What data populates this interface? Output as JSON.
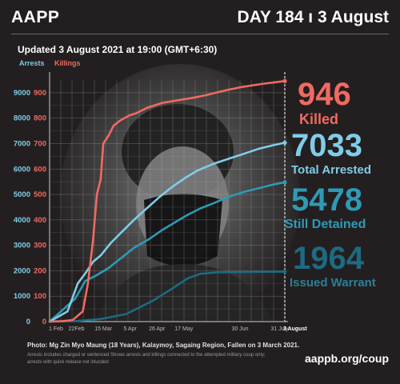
{
  "header": {
    "logo": "AAPP",
    "day": "DAY 184 ı 3 August"
  },
  "updated": "Updated 3 August 2021 at 19:00 (GMT+6:30)",
  "axis_titles": {
    "arrests": "Arrests",
    "killings": "Killings"
  },
  "stats": [
    {
      "value": "946",
      "label": "Killed",
      "color": "#f06a62"
    },
    {
      "value": "7033",
      "label": "Total Arrested",
      "color": "#7fcde8"
    },
    {
      "value": "5478",
      "label": "Still Detained",
      "color": "#2e9ab6"
    },
    {
      "value": "1964",
      "label": "Issued Warrant",
      "color": "#1d6a82"
    }
  ],
  "photo_credit": "Photo: Mg Zin Myo Maung (18 Years), Kalaymoy, Sagaing Region, Fallen on 3 March 2021.",
  "footnote": "Arrests includes charged or sentenced Shows arrests and killings connected to the attempted military coup only; arrests with quick release not inlucded",
  "website": "aappb.org/coup",
  "chart_data": {
    "type": "line",
    "x_tick_labels": [
      "1 Feb",
      "22Feb",
      "15 Mar",
      "5 Apr",
      "26 Apr",
      "17 May",
      "30 Jun",
      "31 July",
      "3 August"
    ],
    "y_left": {
      "label": "Arrests",
      "range": [
        0,
        9500
      ],
      "ticks": [
        0,
        1000,
        2000,
        3000,
        4000,
        5000,
        6000,
        7000,
        8000,
        9000
      ]
    },
    "y_right": {
      "label": "Killings",
      "range": [
        0,
        950
      ],
      "ticks": [
        0,
        100,
        200,
        300,
        400,
        500,
        600,
        700,
        800,
        900
      ]
    },
    "grid": true,
    "series": [
      {
        "name": "Killings",
        "axis": "right",
        "color": "#f06a62",
        "points": [
          [
            0,
            0
          ],
          [
            10,
            2
          ],
          [
            18,
            6
          ],
          [
            26,
            40
          ],
          [
            30,
            150
          ],
          [
            34,
            320
          ],
          [
            37,
            500
          ],
          [
            40,
            560
          ],
          [
            42,
            700
          ],
          [
            46,
            730
          ],
          [
            50,
            770
          ],
          [
            55,
            790
          ],
          [
            62,
            810
          ],
          [
            68,
            820
          ],
          [
            76,
            840
          ],
          [
            88,
            860
          ],
          [
            100,
            870
          ],
          [
            112,
            880
          ],
          [
            122,
            890
          ],
          [
            130,
            900
          ],
          [
            140,
            912
          ],
          [
            150,
            922
          ],
          [
            160,
            930
          ],
          [
            168,
            936
          ],
          [
            176,
            941
          ],
          [
            184,
            946
          ]
        ]
      },
      {
        "name": "Total Arrested",
        "axis": "left",
        "color": "#7fcde8",
        "points": [
          [
            0,
            0
          ],
          [
            14,
            400
          ],
          [
            22,
            1500
          ],
          [
            28,
            1900
          ],
          [
            34,
            2350
          ],
          [
            40,
            2600
          ],
          [
            48,
            3100
          ],
          [
            56,
            3500
          ],
          [
            66,
            4000
          ],
          [
            76,
            4450
          ],
          [
            86,
            4900
          ],
          [
            96,
            5300
          ],
          [
            106,
            5650
          ],
          [
            116,
            5950
          ],
          [
            128,
            6200
          ],
          [
            140,
            6400
          ],
          [
            152,
            6600
          ],
          [
            164,
            6800
          ],
          [
            176,
            6950
          ],
          [
            184,
            7033
          ]
        ]
      },
      {
        "name": "Still Detained",
        "axis": "left",
        "color": "#2e9ab6",
        "points": [
          [
            0,
            0
          ],
          [
            20,
            900
          ],
          [
            28,
            1600
          ],
          [
            36,
            1800
          ],
          [
            46,
            2100
          ],
          [
            56,
            2500
          ],
          [
            66,
            2900
          ],
          [
            78,
            3250
          ],
          [
            88,
            3600
          ],
          [
            98,
            3900
          ],
          [
            108,
            4200
          ],
          [
            118,
            4450
          ],
          [
            128,
            4650
          ],
          [
            140,
            4900
          ],
          [
            152,
            5100
          ],
          [
            164,
            5250
          ],
          [
            176,
            5400
          ],
          [
            184,
            5478
          ]
        ]
      },
      {
        "name": "Issued Warrant",
        "axis": "left",
        "color": "#1d6a82",
        "points": [
          [
            0,
            0
          ],
          [
            20,
            20
          ],
          [
            40,
            100
          ],
          [
            60,
            300
          ],
          [
            80,
            800
          ],
          [
            96,
            1300
          ],
          [
            108,
            1700
          ],
          [
            118,
            1880
          ],
          [
            130,
            1930
          ],
          [
            150,
            1950
          ],
          [
            170,
            1960
          ],
          [
            184,
            1964
          ]
        ]
      }
    ]
  }
}
